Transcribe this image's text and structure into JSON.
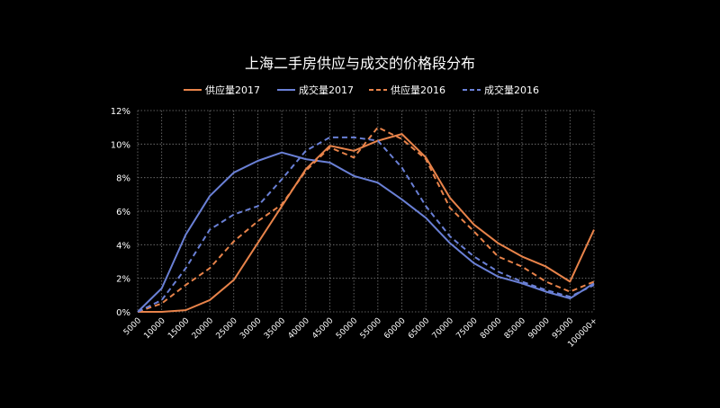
{
  "chart_data": {
    "type": "line",
    "title": "上海二手房供应与成交的价格段分布",
    "xlabel": "",
    "ylabel": "",
    "ylim": [
      0,
      12
    ],
    "y_ticks": [
      "0%",
      "2%",
      "4%",
      "6%",
      "8%",
      "10%",
      "12%"
    ],
    "grid": true,
    "legend_position": "top",
    "categories": [
      "5000",
      "10000",
      "15000",
      "20000",
      "25000",
      "30000",
      "35000",
      "40000",
      "45000",
      "50000",
      "55000",
      "60000",
      "65000",
      "70000",
      "75000",
      "80000",
      "85000",
      "90000",
      "95000",
      "100000+"
    ],
    "series": [
      {
        "name": "供应量2017",
        "color": "#E8834A",
        "dash": false,
        "values": [
          0.0,
          0.0,
          0.1,
          0.7,
          1.9,
          4.1,
          6.3,
          8.5,
          9.9,
          9.6,
          10.2,
          10.6,
          9.2,
          6.8,
          5.2,
          4.1,
          3.3,
          2.7,
          1.8,
          4.9
        ]
      },
      {
        "name": "成交量2017",
        "color": "#6A80D6",
        "dash": false,
        "values": [
          0.0,
          1.4,
          4.6,
          6.9,
          8.3,
          9.0,
          9.5,
          9.1,
          8.9,
          8.1,
          7.7,
          6.7,
          5.6,
          4.1,
          2.9,
          2.1,
          1.7,
          1.2,
          0.8,
          1.7
        ]
      },
      {
        "name": "供应量2016",
        "color": "#E8834A",
        "dash": true,
        "values": [
          0.0,
          0.5,
          1.6,
          2.6,
          4.2,
          5.4,
          6.4,
          8.4,
          9.8,
          9.2,
          11.0,
          10.3,
          9.1,
          6.2,
          4.8,
          3.3,
          2.7,
          1.8,
          1.2,
          1.8
        ]
      },
      {
        "name": "成交量2016",
        "color": "#6A80D6",
        "dash": true,
        "values": [
          0.0,
          0.7,
          2.6,
          4.9,
          5.8,
          6.3,
          7.9,
          9.6,
          10.4,
          10.4,
          10.2,
          8.6,
          6.3,
          4.5,
          3.3,
          2.4,
          1.8,
          1.3,
          0.9,
          1.6
        ]
      }
    ]
  }
}
